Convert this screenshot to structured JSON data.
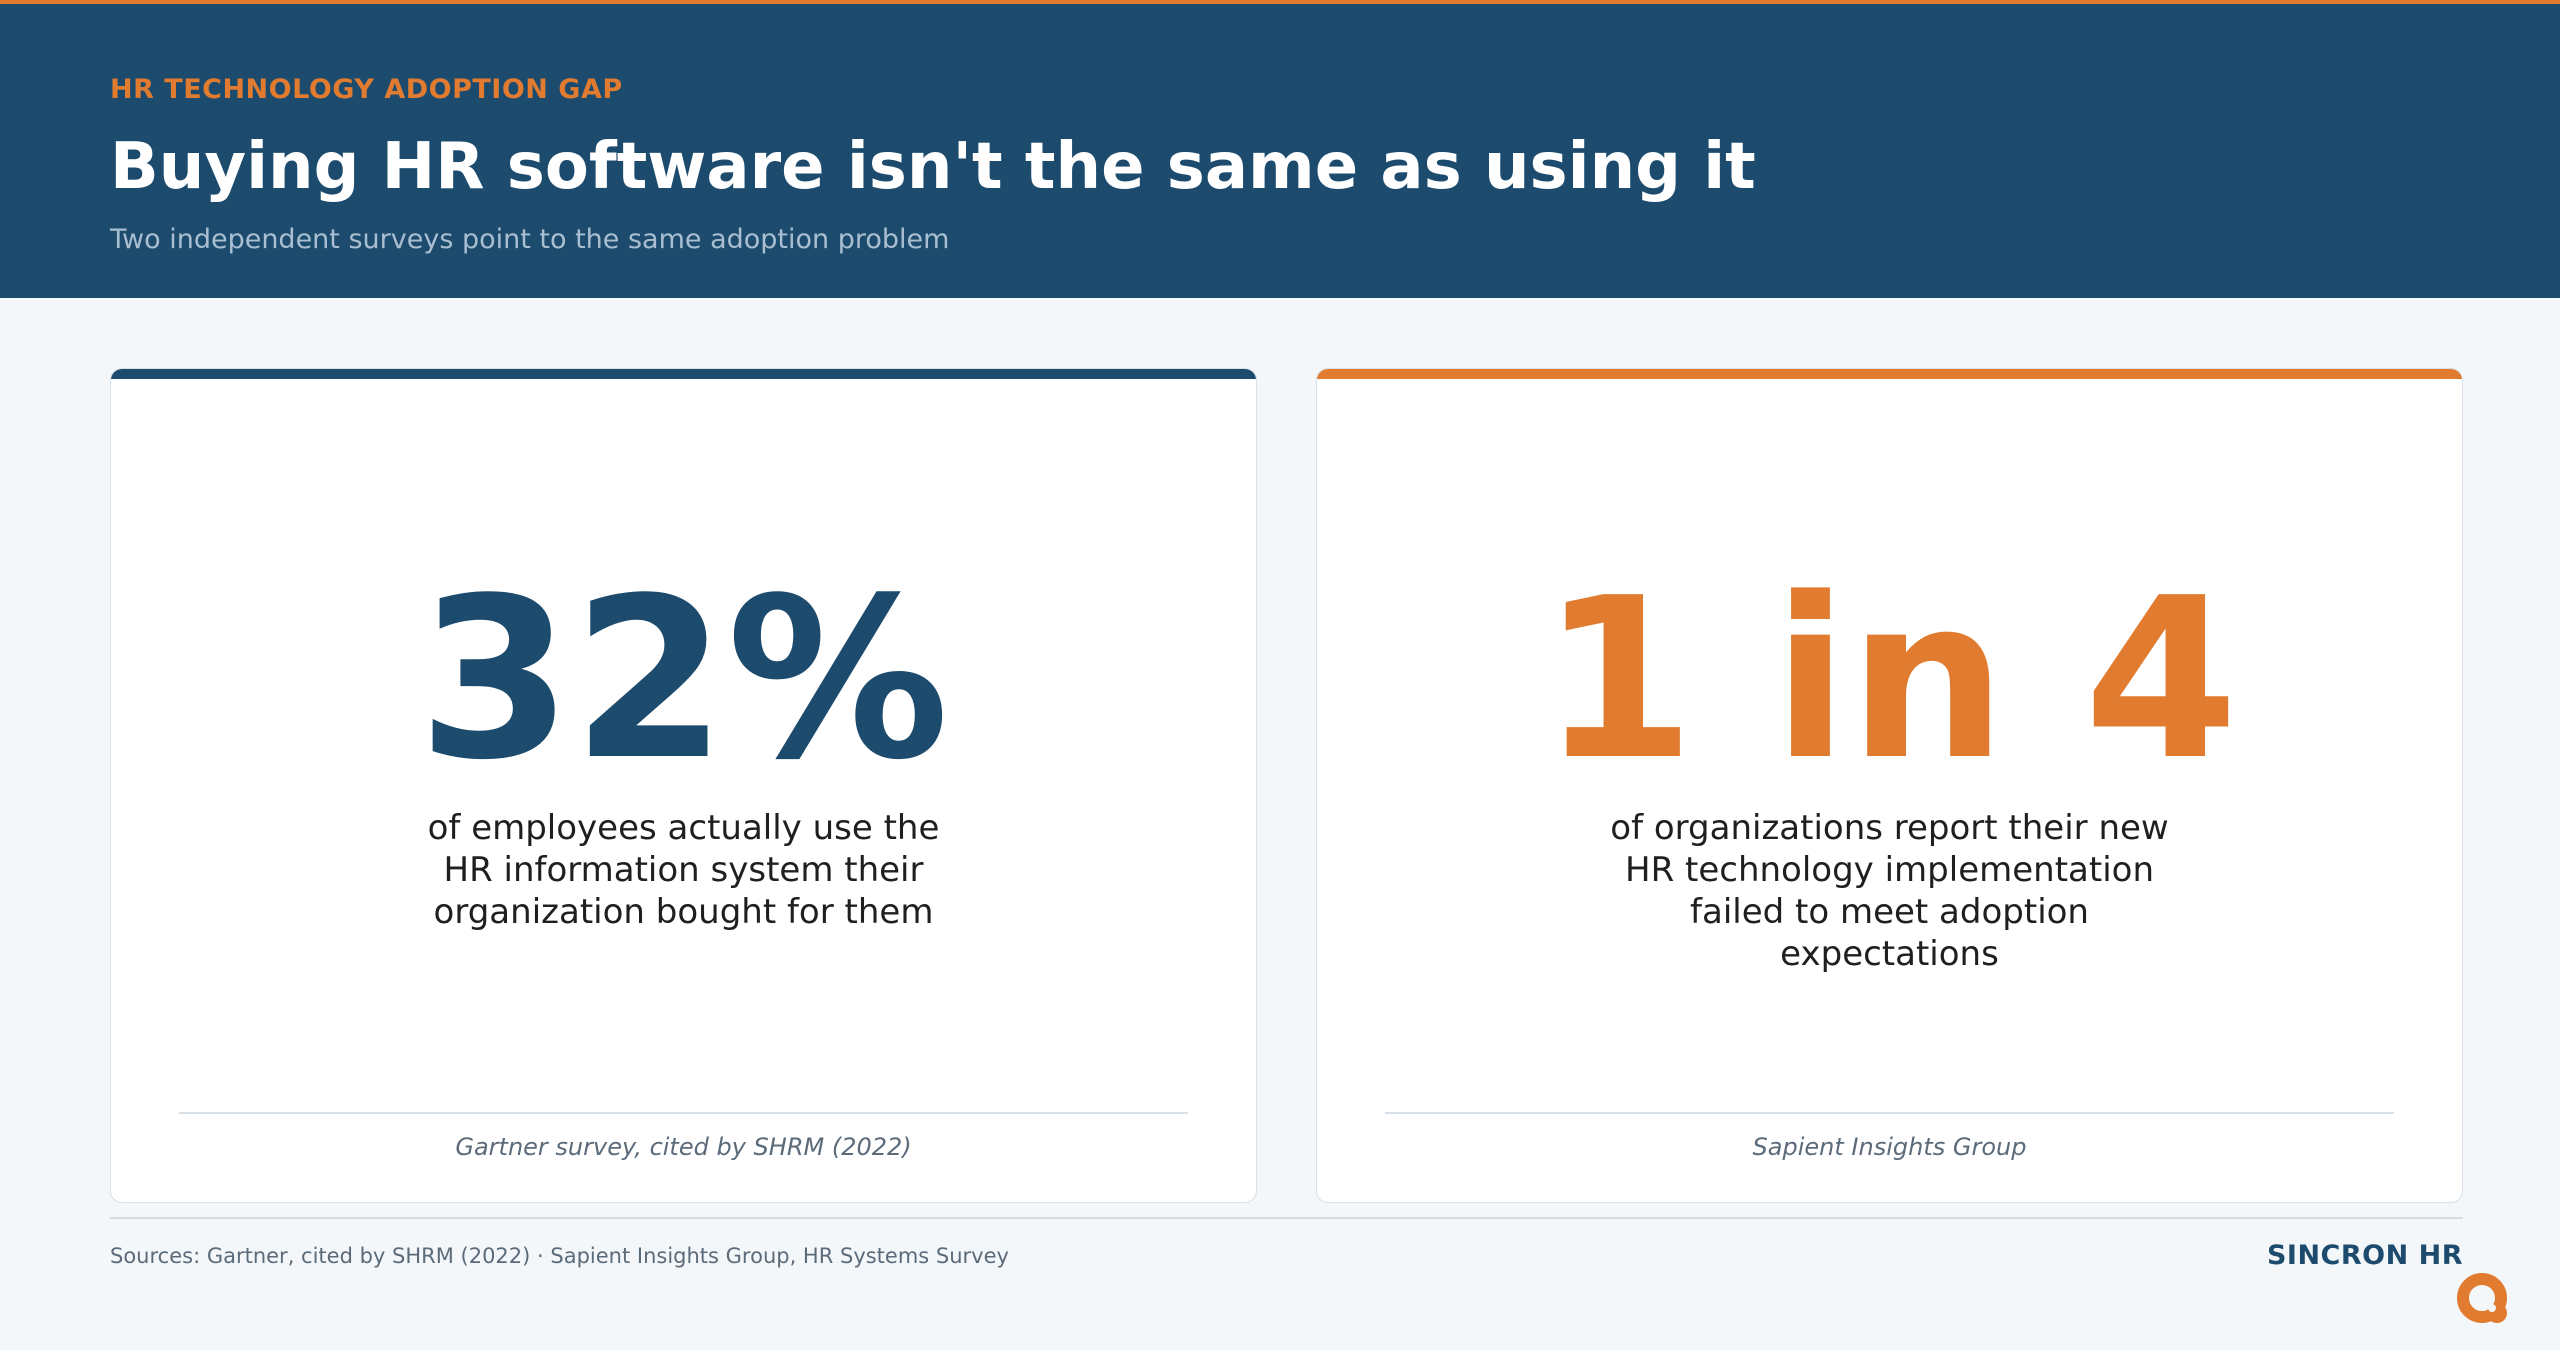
{
  "header": {
    "eyebrow": "HR TECHNOLOGY ADOPTION GAP",
    "title": "Buying HR software isn't the same as using it",
    "subtitle": "Two independent surveys point to the same adoption problem"
  },
  "cards": [
    {
      "value": "32%",
      "description": "of employees actually use the HR information system their organization bought for them",
      "source": "Gartner survey, cited by SHRM (2022)",
      "accent_color": "#1c4b6e"
    },
    {
      "value": "1 in 4",
      "description": "of organizations report their new HR technology implementation failed to meet adoption expectations",
      "source": "Sapient Insights Group",
      "accent_color": "#e07b30"
    }
  ],
  "footer": {
    "sources": "Sources: Gartner, cited by SHRM (2022) · Sapient Insights Group, HR Systems Survey",
    "brand": "SINCRON HR",
    "brand_logo_icon": "sincron-logo-icon"
  },
  "colors": {
    "navy": "#1c4b6e",
    "orange": "#e07b30",
    "background": "#f3f7fa"
  }
}
